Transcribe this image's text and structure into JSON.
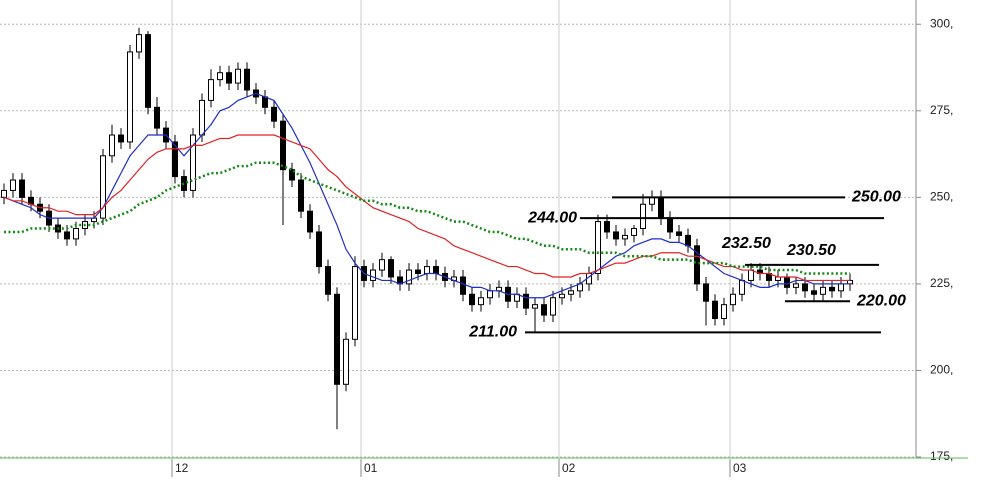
{
  "chart_data": {
    "type": "candlestick",
    "categories": [
      null,
      null,
      null,
      null,
      null,
      null,
      null,
      null,
      null,
      null,
      null,
      null,
      null,
      null,
      null,
      null,
      null,
      null,
      null,
      "12",
      null,
      null,
      null,
      null,
      null,
      null,
      null,
      null,
      null,
      null,
      null,
      null,
      null,
      null,
      null,
      null,
      null,
      null,
      null,
      null,
      "01",
      null,
      null,
      null,
      null,
      null,
      null,
      null,
      null,
      null,
      null,
      null,
      null,
      null,
      null,
      null,
      null,
      null,
      null,
      null,
      null,
      null,
      "02",
      null,
      null,
      null,
      null,
      null,
      null,
      null,
      null,
      null,
      null,
      null,
      null,
      null,
      null,
      null,
      null,
      null,
      null,
      "03",
      null,
      null,
      null,
      null,
      null,
      null,
      null,
      null,
      null,
      null,
      null,
      null,
      null
    ],
    "open": [
      250,
      252,
      255,
      250,
      248,
      246,
      242,
      240,
      238,
      241,
      243,
      244,
      262,
      268,
      266,
      292,
      297,
      276,
      270,
      266,
      256,
      252,
      268,
      278,
      284,
      286,
      283,
      287,
      281,
      279,
      276,
      272,
      258,
      255,
      246,
      240,
      230,
      222,
      196,
      209,
      230,
      226,
      229,
      232,
      227,
      225,
      229,
      228,
      230,
      228,
      226,
      227,
      222,
      219,
      221,
      223,
      224,
      220,
      222,
      218,
      219,
      216,
      221,
      222,
      223,
      225,
      228,
      243,
      240,
      238,
      239,
      241,
      248,
      250,
      244,
      240,
      239,
      236,
      225,
      220,
      215,
      219,
      222,
      226,
      229,
      228,
      226,
      227,
      224,
      225,
      223,
      222,
      224,
      223,
      225
    ],
    "high": [
      254,
      257,
      257,
      252,
      250,
      248,
      244,
      242,
      243,
      245,
      246,
      264,
      271,
      270,
      294,
      299,
      298,
      279,
      272,
      268,
      258,
      270,
      280,
      287,
      288,
      288,
      289,
      289,
      283,
      281,
      278,
      274,
      260,
      257,
      248,
      242,
      232,
      224,
      211,
      233,
      232,
      231,
      234,
      233,
      229,
      231,
      231,
      232,
      232,
      230,
      229,
      229,
      224,
      223,
      225,
      226,
      226,
      224,
      224,
      221,
      221,
      223,
      224,
      225,
      227,
      230,
      245,
      245,
      242,
      241,
      242,
      251,
      252,
      252,
      246,
      242,
      241,
      238,
      227,
      222,
      221,
      224,
      228,
      231,
      231,
      230,
      229,
      228,
      227,
      227,
      225,
      226,
      226,
      227,
      228
    ],
    "low": [
      248,
      250,
      248,
      246,
      244,
      240,
      238,
      236,
      236,
      239,
      241,
      242,
      260,
      264,
      264,
      290,
      274,
      268,
      264,
      254,
      250,
      250,
      266,
      276,
      282,
      281,
      281,
      279,
      277,
      274,
      270,
      242,
      253,
      244,
      238,
      228,
      220,
      183,
      194,
      207,
      224,
      224,
      227,
      225,
      223,
      223,
      226,
      226,
      226,
      224,
      224,
      220,
      217,
      217,
      219,
      221,
      218,
      218,
      216,
      211,
      214,
      214,
      219,
      220,
      221,
      223,
      226,
      238,
      236,
      236,
      237,
      239,
      246,
      242,
      238,
      237,
      234,
      223,
      213,
      213,
      213,
      217,
      220,
      224,
      226,
      224,
      224,
      222,
      222,
      221,
      220,
      220,
      221,
      221,
      223
    ],
    "close": [
      252,
      255,
      250,
      248,
      246,
      242,
      240,
      238,
      241,
      243,
      244,
      262,
      268,
      266,
      292,
      297,
      276,
      270,
      266,
      256,
      252,
      268,
      278,
      284,
      286,
      283,
      287,
      281,
      279,
      276,
      272,
      258,
      255,
      246,
      240,
      230,
      222,
      196,
      209,
      230,
      226,
      229,
      232,
      227,
      225,
      229,
      228,
      230,
      228,
      226,
      227,
      222,
      219,
      221,
      223,
      224,
      220,
      222,
      218,
      219,
      216,
      221,
      222,
      223,
      225,
      228,
      243,
      240,
      238,
      239,
      241,
      248,
      250,
      244,
      240,
      239,
      236,
      225,
      220,
      215,
      219,
      222,
      226,
      229,
      228,
      226,
      227,
      224,
      225,
      223,
      222,
      224,
      223,
      225,
      226
    ],
    "moving_averages": [
      {
        "color": "#1f2fc8",
        "dashed": false,
        "values": [
          250,
          249,
          248,
          247,
          245,
          244,
          244,
          244,
          244,
          244,
          244,
          247,
          252,
          257,
          262,
          265,
          268,
          268,
          268,
          265,
          262,
          265,
          268,
          271,
          275,
          276,
          278,
          279,
          280,
          279,
          278,
          274,
          270,
          265,
          260,
          254,
          248,
          242,
          235,
          231,
          228,
          227,
          226,
          226,
          225,
          226,
          227,
          228,
          228,
          227,
          226,
          225,
          224,
          224,
          223,
          223,
          222,
          222,
          221,
          221,
          221,
          222,
          223,
          224,
          225,
          227,
          229,
          231,
          233,
          234,
          236,
          237,
          238,
          238,
          237,
          237,
          236,
          234,
          232,
          230,
          228,
          227,
          226,
          225,
          224,
          224,
          225,
          225,
          226,
          226,
          225,
          225,
          225,
          225,
          225
        ]
      },
      {
        "color": "#e02424",
        "dashed": false,
        "values": [
          250,
          249,
          249,
          248,
          247,
          247,
          246,
          246,
          245,
          245,
          245,
          247,
          250,
          252,
          255,
          258,
          261,
          263,
          264,
          264,
          264,
          265,
          265,
          266,
          267,
          267,
          268,
          268,
          268,
          268,
          268,
          267,
          266,
          265,
          264,
          261,
          258,
          256,
          253,
          251,
          249,
          247,
          246,
          245,
          244,
          243,
          241,
          240,
          239,
          238,
          236,
          235,
          234,
          233,
          232,
          231,
          230,
          230,
          229,
          228,
          228,
          227,
          227,
          227,
          228,
          228,
          229,
          230,
          231,
          231,
          232,
          233,
          233,
          234,
          234,
          234,
          233,
          233,
          232,
          231,
          230,
          230,
          229,
          229,
          228,
          228,
          227,
          227,
          227,
          226,
          226,
          226,
          226,
          226,
          226
        ]
      },
      {
        "color": "#138a13",
        "dashed": true,
        "values": [
          240,
          240,
          240,
          241,
          241,
          241,
          241,
          241,
          242,
          242,
          242,
          243,
          244,
          245,
          246,
          248,
          249,
          250,
          252,
          253,
          254,
          255,
          256,
          257,
          257,
          258,
          259,
          259,
          260,
          260,
          260,
          259,
          258,
          256,
          255,
          254,
          253,
          252,
          251,
          250,
          249,
          249,
          248,
          248,
          247,
          247,
          246,
          246,
          245,
          244,
          243,
          243,
          242,
          241,
          240,
          240,
          239,
          238,
          238,
          237,
          236,
          236,
          235,
          235,
          235,
          234,
          234,
          234,
          234,
          233,
          233,
          233,
          233,
          232,
          232,
          232,
          232,
          231,
          231,
          231,
          231,
          230,
          230,
          230,
          230,
          229,
          229,
          229,
          229,
          228,
          228,
          228,
          228,
          228,
          228
        ]
      }
    ],
    "levels": [
      {
        "value": 250,
        "label": "250.00"
      },
      {
        "value": 244,
        "label": "244.00"
      },
      {
        "value": 232.5,
        "label": "232.50"
      },
      {
        "value": 230.5,
        "label": "230.50"
      },
      {
        "value": 220,
        "label": "220.00"
      },
      {
        "value": 211,
        "label": "211.00"
      }
    ],
    "ylim": [
      175,
      307
    ],
    "yticks": [
      {
        "value": 175,
        "label": "175,"
      },
      {
        "value": 200,
        "label": "200,"
      },
      {
        "value": 225,
        "label": "225,"
      },
      {
        "value": 250,
        "label": "250,"
      },
      {
        "value": 275,
        "label": "275,"
      },
      {
        "value": 300,
        "label": "300,"
      }
    ],
    "grid": true
  }
}
